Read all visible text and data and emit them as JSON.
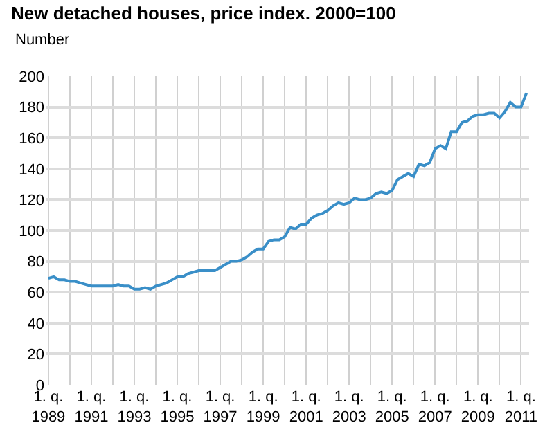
{
  "chart_data": {
    "type": "line",
    "title": "New detached houses, price index. 2000=100",
    "ylabel": "Number",
    "categories": [
      "1. q.\n1989",
      null,
      null,
      null,
      null,
      null,
      null,
      null,
      "1. q.\n1991",
      null,
      null,
      null,
      null,
      null,
      null,
      null,
      "1. q.\n1993",
      null,
      null,
      null,
      null,
      null,
      null,
      null,
      "1. q.\n1995",
      null,
      null,
      null,
      null,
      null,
      null,
      null,
      "1. q.\n1997",
      null,
      null,
      null,
      null,
      null,
      null,
      null,
      "1. q.\n1999",
      null,
      null,
      null,
      null,
      null,
      null,
      null,
      "1. q.\n2001",
      null,
      null,
      null,
      null,
      null,
      null,
      null,
      "1. q.\n2003",
      null,
      null,
      null,
      null,
      null,
      null,
      null,
      "1. q.\n2005",
      null,
      null,
      null,
      null,
      null,
      null,
      null,
      "1. q.\n2007",
      null,
      null,
      null,
      null,
      null,
      null,
      null,
      "1. q.\n2009",
      null,
      null,
      null,
      null,
      null,
      null,
      null,
      "1. q.\n2011",
      null
    ],
    "series": [
      {
        "color": "#3a8fc8",
        "values": [
          69,
          70,
          68,
          68,
          67,
          67,
          66,
          65,
          64,
          64,
          64,
          64,
          64,
          65,
          64,
          64,
          62,
          62,
          63,
          62,
          64,
          65,
          66,
          68,
          70,
          70,
          72,
          73,
          74,
          74,
          74,
          74,
          76,
          78,
          80,
          80,
          81,
          83,
          86,
          88,
          88,
          93,
          94,
          94,
          96,
          102,
          101,
          104,
          104,
          108,
          110,
          111,
          113,
          116,
          118,
          117,
          118,
          121,
          120,
          120,
          121,
          124,
          125,
          124,
          126,
          133,
          135,
          137,
          135,
          143,
          142,
          144,
          153,
          155,
          153,
          164,
          164,
          170,
          171,
          174,
          175,
          175,
          176,
          176,
          173,
          177,
          183,
          180,
          180,
          189
        ]
      }
    ],
    "ylim": [
      0,
      200
    ],
    "yticks": [
      0,
      20,
      40,
      60,
      80,
      100,
      120,
      140,
      160,
      180,
      200
    ],
    "grid": true,
    "marker": "none",
    "line_style": "solid"
  }
}
